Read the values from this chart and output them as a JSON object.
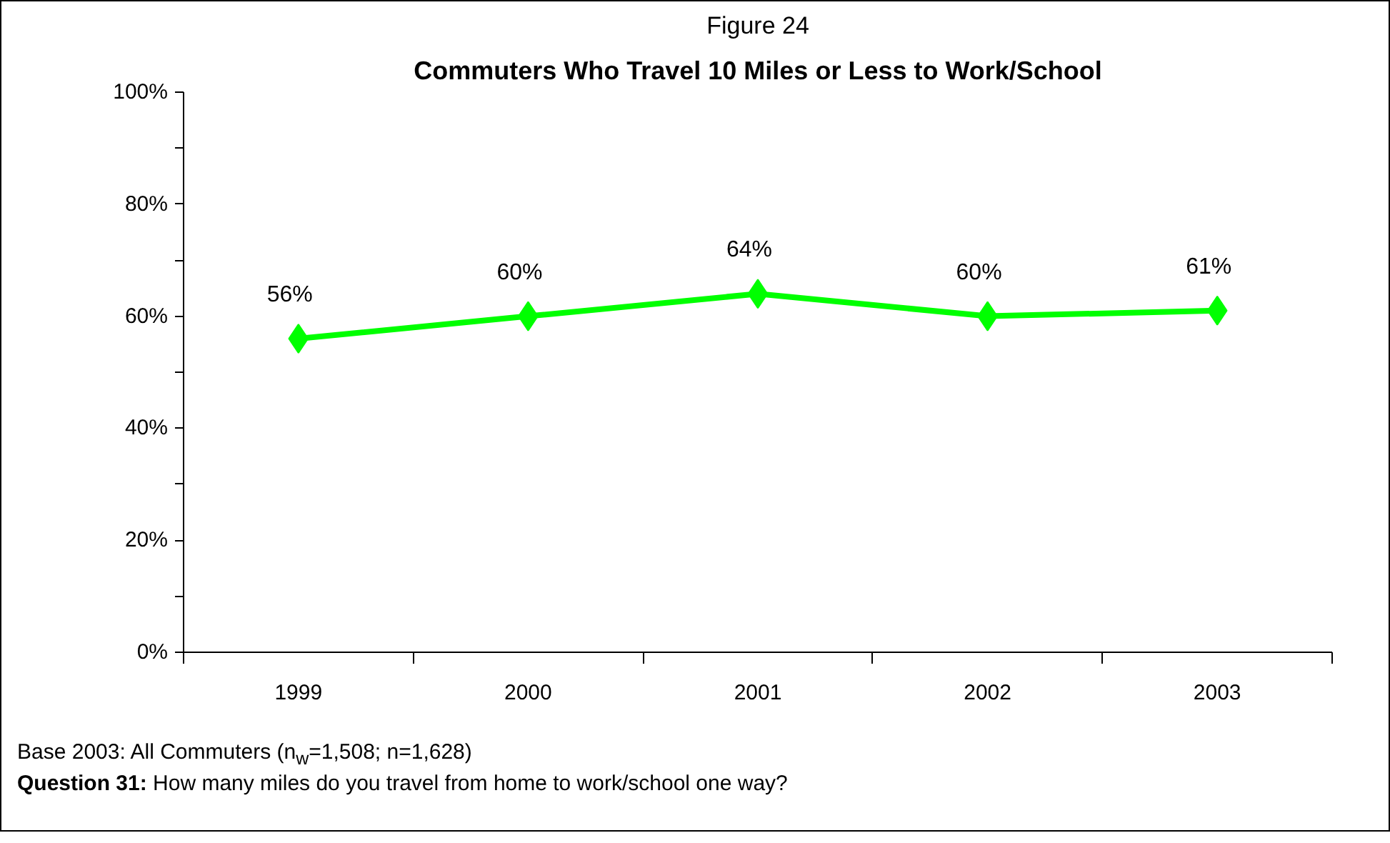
{
  "chart_data": {
    "type": "line",
    "title": "Figure 24",
    "subtitle": "Commuters Who Travel 10 Miles or Less to Work/School",
    "categories": [
      "1999",
      "2000",
      "2001",
      "2002",
      "2003"
    ],
    "series": [
      {
        "color": "#00ff00",
        "values": [
          56,
          60,
          64,
          60,
          61
        ]
      }
    ],
    "value_labels": [
      "56%",
      "60%",
      "64%",
      "60%",
      "61%"
    ],
    "ylim": [
      0,
      100
    ],
    "yticks": [
      {
        "value": 0,
        "label": "0%"
      },
      {
        "value": 10,
        "label": null
      },
      {
        "value": 20,
        "label": "20%"
      },
      {
        "value": 30,
        "label": null
      },
      {
        "value": 40,
        "label": "40%"
      },
      {
        "value": 50,
        "label": null
      },
      {
        "value": 60,
        "label": "60%"
      },
      {
        "value": 70,
        "label": null
      },
      {
        "value": 80,
        "label": "80%"
      },
      {
        "value": 90,
        "label": null
      },
      {
        "value": 100,
        "label": "100%"
      }
    ],
    "marker": "diamond",
    "line_style": "solid",
    "grid": false,
    "annotations": [
      "Base 2003:  All Commuters (n$_{w}$=1,508; n=1,628)",
      "Question 31:  How many miles do you travel from home to work/school one way?"
    ]
  }
}
